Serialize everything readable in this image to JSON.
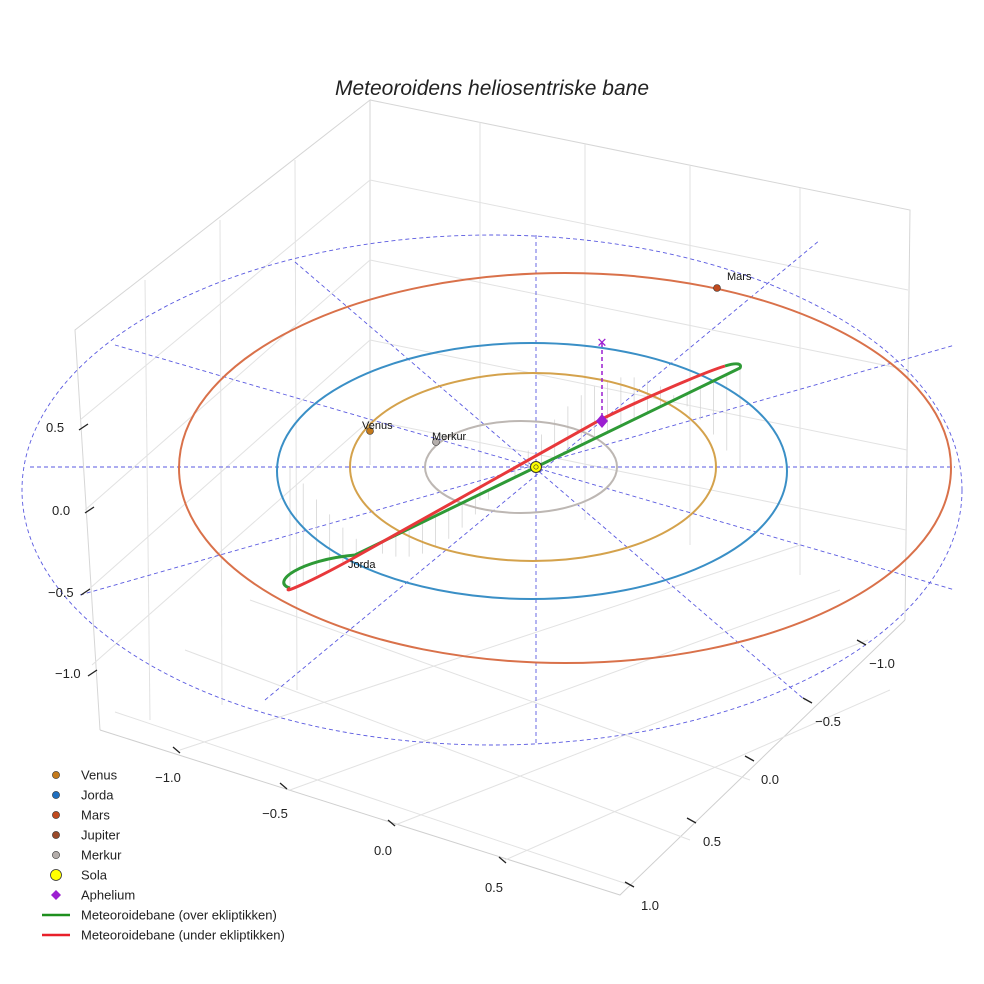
{
  "chart_data": {
    "type": "3d-line",
    "title": "Meteoroidens heliosentriske bane",
    "x_axis": {
      "ticks": [
        "−1.0",
        "−0.5",
        "0.0",
        "0.5"
      ]
    },
    "y_axis": {
      "ticks": [
        "−1.0",
        "−0.5",
        "0.0",
        "0.5",
        "1.0"
      ]
    },
    "z_axis": {
      "ticks": [
        "−1.0",
        "−0.5",
        "0.0",
        "0.5"
      ]
    },
    "grid": true,
    "legend_position": "bottom-left",
    "orbits": [
      {
        "name": "Merkur",
        "radius_au": 0.39,
        "color": "#bdb7b3"
      },
      {
        "name": "Venus",
        "radius_au": 0.72,
        "color": "#d4a24c"
      },
      {
        "name": "Jorda",
        "radius_au": 1.0,
        "color": "#3a8fc6"
      },
      {
        "name": "Mars",
        "radius_au": 1.52,
        "color": "#d9714a"
      }
    ],
    "planet_labels": [
      {
        "text": "Venus",
        "color": "#c47a1c"
      },
      {
        "text": "Merkur",
        "color": "#a9a3a0"
      },
      {
        "text": "Jorda",
        "color": "#1f6fc0"
      },
      {
        "text": "Mars",
        "color": "#c04a1e"
      }
    ],
    "meteoroid_orbit": {
      "above_ecliptic_color": "#2e9a36",
      "below_ecliptic_color": "#e8383b"
    },
    "aphelium_color": "#9c1fd1",
    "ecliptic_reference_color": "#5a5ae0",
    "legend": [
      {
        "label": "Venus",
        "marker": "circle",
        "color": "#c47a1c"
      },
      {
        "label": "Jorda",
        "marker": "circle",
        "color": "#1f6fc0"
      },
      {
        "label": "Mars",
        "marker": "circle",
        "color": "#c04a1e"
      },
      {
        "label": "Jupiter",
        "marker": "circle",
        "color": "#9a4a2a"
      },
      {
        "label": "Merkur",
        "marker": "circle",
        "color": "#b4aeab"
      },
      {
        "label": "Sola",
        "marker": "circle-large",
        "color": "#ffff00"
      },
      {
        "label": "Aphelium",
        "marker": "diamond",
        "color": "#9c1fd1"
      },
      {
        "label": "Meteoroidebane (over ekliptikken)",
        "marker": "line",
        "color": "#1e8f1e"
      },
      {
        "label": "Meteoroidebane (under ekliptikken)",
        "marker": "line",
        "color": "#e8202a"
      }
    ]
  }
}
